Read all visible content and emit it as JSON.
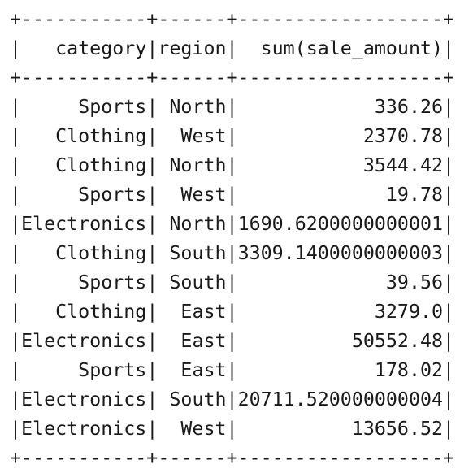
{
  "table": {
    "columns": [
      "category",
      "region",
      "sum(sale_amount)"
    ],
    "rows": [
      [
        "Sports",
        "North",
        "336.26"
      ],
      [
        "Clothing",
        "West",
        "2370.78"
      ],
      [
        "Clothing",
        "North",
        "3544.42"
      ],
      [
        "Sports",
        "West",
        "19.78"
      ],
      [
        "Electronics",
        "North",
        "1690.6200000000001"
      ],
      [
        "Clothing",
        "South",
        "3309.1400000000003"
      ],
      [
        "Sports",
        "South",
        "39.56"
      ],
      [
        "Clothing",
        "East",
        "3279.0"
      ],
      [
        "Electronics",
        "East",
        "50552.48"
      ],
      [
        "Sports",
        "East",
        "178.02"
      ],
      [
        "Electronics",
        "South",
        "20711.520000000004"
      ],
      [
        "Electronics",
        "West",
        "13656.52"
      ]
    ]
  }
}
